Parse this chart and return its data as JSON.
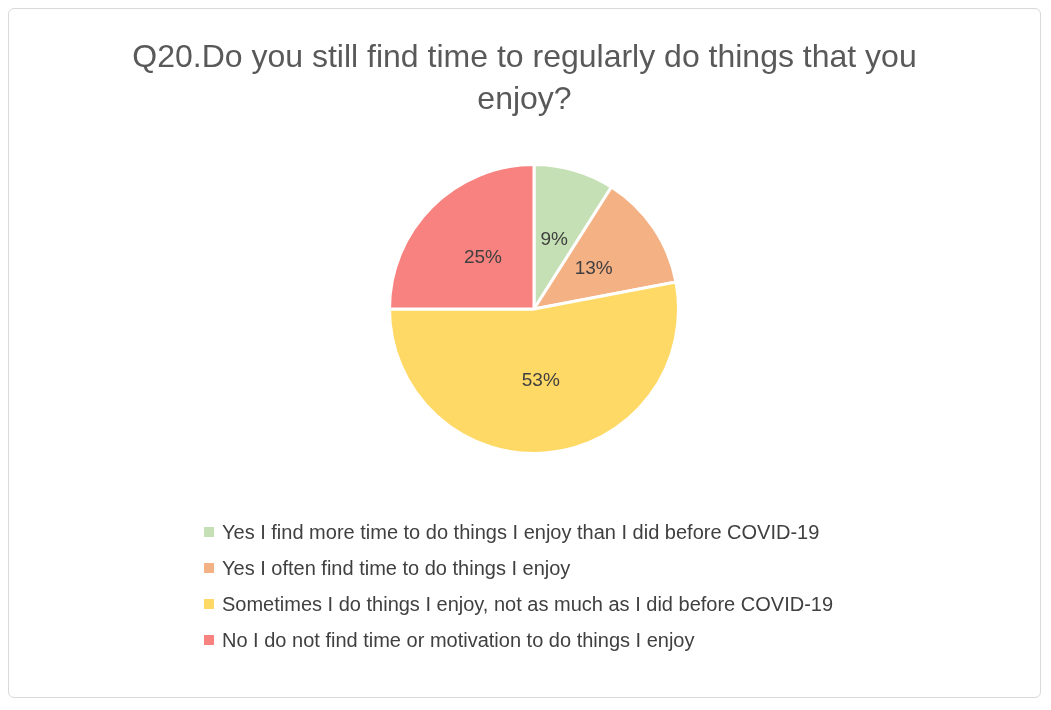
{
  "chart_data": {
    "type": "pie",
    "title": "Q20.Do you still find time to regularly do things that you enjoy?",
    "categories": [
      "Yes I find more time to do things I enjoy than I did before COVID-19",
      "Yes I often find time to do things I enjoy",
      "Sometimes I do things I enjoy, not as much as I did before COVID-19",
      "No I do not find time or motivation to do things I enjoy"
    ],
    "values": [
      9,
      13,
      53,
      25
    ],
    "colors": [
      "#c5e0b4",
      "#f4b183",
      "#ffd966",
      "#f8827f"
    ],
    "value_labels": [
      "9%",
      "13%",
      "53%",
      "25%"
    ],
    "legend": "bottom"
  }
}
